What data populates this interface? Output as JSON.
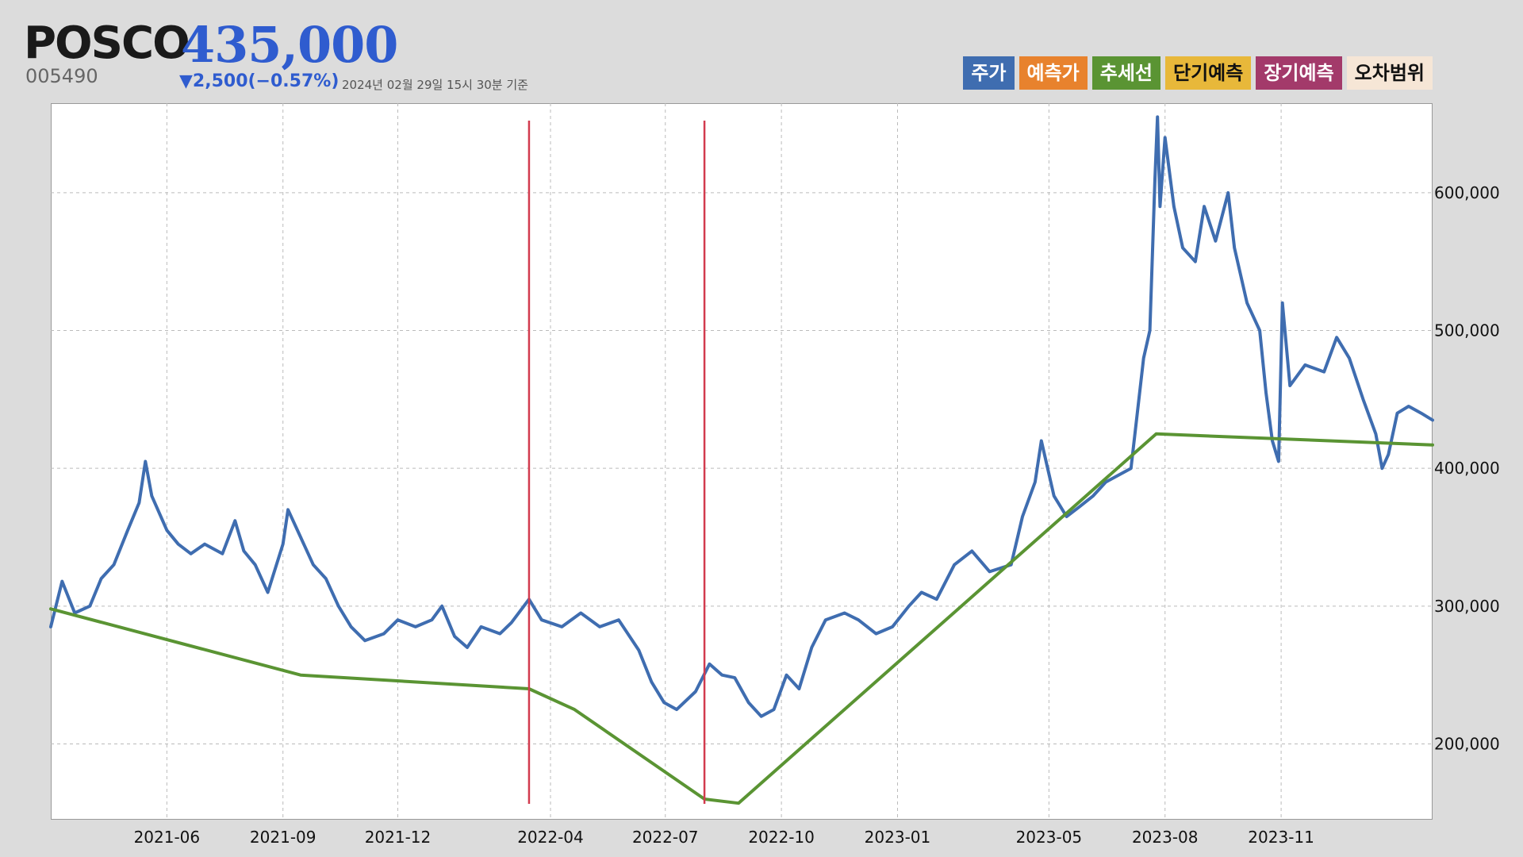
{
  "header": {
    "name": "POSCO",
    "price": "435,000",
    "code": "005490",
    "change": "▼2,500(−0.57%)",
    "timestamp": "2024년 02월 29일 15시 30분 기준"
  },
  "legend": [
    {
      "label": "주가",
      "bg": "#3f6db0",
      "fg": "#ffffff"
    },
    {
      "label": "예측가",
      "bg": "#e8822d",
      "fg": "#ffffff"
    },
    {
      "label": "추세선",
      "bg": "#5a9433",
      "fg": "#ffffff"
    },
    {
      "label": "단기예측",
      "bg": "#e8b83a",
      "fg": "#111111"
    },
    {
      "label": "장기예측",
      "bg": "#a33a6a",
      "fg": "#ffffff"
    },
    {
      "label": "오차범위",
      "bg": "#f6e6d6",
      "fg": "#111111"
    }
  ],
  "chart_data": {
    "type": "line",
    "colors": {
      "price": "#3f6db0",
      "trend": "#5a9433",
      "marker": "#d23b4e",
      "grid": "#bbbbbb"
    },
    "x_ticks": [
      "2021-06",
      "2021-09",
      "2021-12",
      "2022-04",
      "2022-07",
      "2022-10",
      "2023-01",
      "2023-05",
      "2023-08",
      "2023-11"
    ],
    "y_ticks": [
      "200,000",
      "300,000",
      "400,000",
      "500,000",
      "600,000"
    ],
    "y_tick_values": [
      200000,
      300000,
      400000,
      500000,
      600000
    ],
    "xlim": [
      "2021-03-01",
      "2024-02-29"
    ],
    "ylim": [
      145000,
      665000
    ],
    "grid": true,
    "y_axis_side": "right",
    "vertical_markers": [
      "2022-03-15",
      "2022-08-01"
    ],
    "series": [
      {
        "key": "price",
        "points": [
          [
            "2021-03-01",
            285000
          ],
          [
            "2021-03-10",
            318000
          ],
          [
            "2021-03-20",
            295000
          ],
          [
            "2021-04-01",
            300000
          ],
          [
            "2021-04-10",
            320000
          ],
          [
            "2021-04-20",
            330000
          ],
          [
            "2021-05-01",
            355000
          ],
          [
            "2021-05-10",
            375000
          ],
          [
            "2021-05-15",
            405000
          ],
          [
            "2021-05-20",
            380000
          ],
          [
            "2021-06-01",
            355000
          ],
          [
            "2021-06-10",
            345000
          ],
          [
            "2021-06-20",
            338000
          ],
          [
            "2021-07-01",
            345000
          ],
          [
            "2021-07-15",
            338000
          ],
          [
            "2021-07-25",
            362000
          ],
          [
            "2021-08-01",
            340000
          ],
          [
            "2021-08-10",
            330000
          ],
          [
            "2021-08-20",
            310000
          ],
          [
            "2021-09-01",
            345000
          ],
          [
            "2021-09-05",
            370000
          ],
          [
            "2021-09-15",
            350000
          ],
          [
            "2021-09-25",
            330000
          ],
          [
            "2021-10-05",
            320000
          ],
          [
            "2021-10-15",
            300000
          ],
          [
            "2021-10-25",
            285000
          ],
          [
            "2021-11-05",
            275000
          ],
          [
            "2021-11-20",
            280000
          ],
          [
            "2021-12-01",
            290000
          ],
          [
            "2021-12-15",
            285000
          ],
          [
            "2021-12-28",
            290000
          ],
          [
            "2022-01-05",
            300000
          ],
          [
            "2022-01-15",
            278000
          ],
          [
            "2022-01-25",
            270000
          ],
          [
            "2022-02-05",
            285000
          ],
          [
            "2022-02-20",
            280000
          ],
          [
            "2022-03-01",
            288000
          ],
          [
            "2022-03-15",
            305000
          ],
          [
            "2022-03-25",
            290000
          ],
          [
            "2022-04-10",
            285000
          ],
          [
            "2022-04-25",
            295000
          ],
          [
            "2022-05-10",
            285000
          ],
          [
            "2022-05-25",
            290000
          ],
          [
            "2022-06-10",
            268000
          ],
          [
            "2022-06-20",
            245000
          ],
          [
            "2022-06-30",
            230000
          ],
          [
            "2022-07-10",
            225000
          ],
          [
            "2022-07-25",
            238000
          ],
          [
            "2022-08-05",
            258000
          ],
          [
            "2022-08-15",
            250000
          ],
          [
            "2022-08-25",
            248000
          ],
          [
            "2022-09-05",
            230000
          ],
          [
            "2022-09-15",
            220000
          ],
          [
            "2022-09-25",
            225000
          ],
          [
            "2022-10-05",
            250000
          ],
          [
            "2022-10-15",
            240000
          ],
          [
            "2022-10-25",
            270000
          ],
          [
            "2022-11-05",
            290000
          ],
          [
            "2022-11-20",
            295000
          ],
          [
            "2022-12-01",
            290000
          ],
          [
            "2022-12-15",
            280000
          ],
          [
            "2022-12-28",
            285000
          ],
          [
            "2023-01-10",
            300000
          ],
          [
            "2023-01-20",
            310000
          ],
          [
            "2023-02-01",
            305000
          ],
          [
            "2023-02-15",
            330000
          ],
          [
            "2023-03-01",
            340000
          ],
          [
            "2023-03-15",
            325000
          ],
          [
            "2023-04-01",
            330000
          ],
          [
            "2023-04-10",
            365000
          ],
          [
            "2023-04-20",
            390000
          ],
          [
            "2023-04-25",
            420000
          ],
          [
            "2023-05-05",
            380000
          ],
          [
            "2023-05-15",
            365000
          ],
          [
            "2023-05-25",
            372000
          ],
          [
            "2023-06-05",
            380000
          ],
          [
            "2023-06-15",
            390000
          ],
          [
            "2023-06-25",
            395000
          ],
          [
            "2023-07-05",
            400000
          ],
          [
            "2023-07-15",
            480000
          ],
          [
            "2023-07-20",
            500000
          ],
          [
            "2023-07-24",
            610000
          ],
          [
            "2023-07-26",
            655000
          ],
          [
            "2023-07-28",
            590000
          ],
          [
            "2023-08-01",
            640000
          ],
          [
            "2023-08-08",
            590000
          ],
          [
            "2023-08-15",
            560000
          ],
          [
            "2023-08-25",
            550000
          ],
          [
            "2023-09-01",
            590000
          ],
          [
            "2023-09-10",
            565000
          ],
          [
            "2023-09-20",
            600000
          ],
          [
            "2023-09-25",
            560000
          ],
          [
            "2023-10-05",
            520000
          ],
          [
            "2023-10-15",
            500000
          ],
          [
            "2023-10-20",
            455000
          ],
          [
            "2023-10-25",
            420000
          ],
          [
            "2023-10-30",
            405000
          ],
          [
            "2023-11-02",
            520000
          ],
          [
            "2023-11-08",
            460000
          ],
          [
            "2023-11-20",
            475000
          ],
          [
            "2023-12-05",
            470000
          ],
          [
            "2023-12-15",
            495000
          ],
          [
            "2023-12-25",
            480000
          ],
          [
            "2024-01-05",
            450000
          ],
          [
            "2024-01-15",
            425000
          ],
          [
            "2024-01-20",
            400000
          ],
          [
            "2024-01-25",
            410000
          ],
          [
            "2024-02-01",
            440000
          ],
          [
            "2024-02-10",
            445000
          ],
          [
            "2024-02-20",
            440000
          ],
          [
            "2024-02-29",
            435000
          ]
        ]
      },
      {
        "key": "trend",
        "points": [
          [
            "2021-03-01",
            298000
          ],
          [
            "2021-09-15",
            250000
          ],
          [
            "2022-03-15",
            240000
          ],
          [
            "2022-04-20",
            225000
          ],
          [
            "2022-08-01",
            160000
          ],
          [
            "2022-08-28",
            157000
          ],
          [
            "2023-07-25",
            425000
          ],
          [
            "2024-02-29",
            417000
          ]
        ]
      }
    ]
  }
}
